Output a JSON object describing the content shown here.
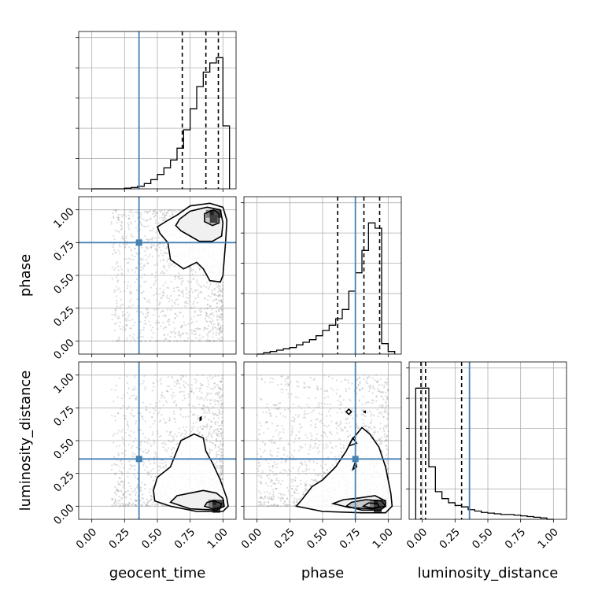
{
  "chart_data": {
    "type": "corner",
    "parameters": [
      "geocent_time",
      "phase",
      "luminosity_distance"
    ],
    "tick_values": [
      0.0,
      0.25,
      0.5,
      0.75,
      1.0
    ],
    "tick_labels": [
      "0.00",
      "0.25",
      "0.50",
      "0.75",
      "1.00"
    ],
    "axis_range": [
      -0.1,
      1.1
    ],
    "grid": true,
    "colors": {
      "truth": "#4682b4",
      "hist": "#000000",
      "points": "#9e9e9e",
      "quantile": "#000000"
    },
    "injection_values": {
      "geocent_time": 0.36,
      "phase": 0.75,
      "luminosity_distance": 0.36
    },
    "marginals": [
      {
        "parameter": "geocent_time",
        "quantiles": [
          0.69,
          0.87,
          0.965
        ],
        "bin_edges": [
          0.0,
          0.05,
          0.1,
          0.15,
          0.2,
          0.25,
          0.3,
          0.35,
          0.4,
          0.45,
          0.5,
          0.55,
          0.6,
          0.65,
          0.7,
          0.75,
          0.8,
          0.85,
          0.9,
          0.95,
          1.0,
          1.05
        ],
        "counts": [
          0.0,
          0.0,
          0.0,
          0.0,
          0.0,
          0.5,
          1.0,
          2.0,
          4.0,
          7.0,
          11.0,
          16.0,
          22.0,
          31.0,
          45.0,
          61.0,
          78.0,
          89.0,
          96.0,
          100.0,
          48.0
        ]
      },
      {
        "parameter": "phase",
        "quantiles": [
          0.615,
          0.815,
          0.935
        ],
        "bin_edges": [
          0.0,
          0.05,
          0.1,
          0.15,
          0.2,
          0.25,
          0.3,
          0.35,
          0.4,
          0.45,
          0.5,
          0.55,
          0.6,
          0.65,
          0.7,
          0.75,
          0.8,
          0.85,
          0.9,
          0.95,
          1.0,
          1.05
        ],
        "counts": [
          0.0,
          1.0,
          2.0,
          3.0,
          4.0,
          5.0,
          7.0,
          9.0,
          11.0,
          14.0,
          18.0,
          22.0,
          27.0,
          34.0,
          48.0,
          62.0,
          79.0,
          100.0,
          96.0,
          8.0,
          2.0
        ]
      },
      {
        "parameter": "luminosity_distance",
        "quantiles": [
          -0.01,
          0.025,
          0.3
        ],
        "bin_edges": [
          -0.05,
          0.0,
          0.05,
          0.1,
          0.15,
          0.2,
          0.25,
          0.3,
          0.35,
          0.4,
          0.45,
          0.5,
          0.55,
          0.6,
          0.65,
          0.7,
          0.75,
          0.8,
          0.85,
          0.9,
          0.95,
          1.0
        ],
        "counts": [
          95.0,
          95.0,
          38.0,
          20.0,
          15.0,
          12.0,
          10.0,
          9.0,
          7.0,
          6.0,
          5.0,
          4.5,
          4.0,
          3.5,
          3.5,
          3.0,
          2.5,
          2.0,
          1.5,
          1.0,
          0.0
        ]
      }
    ],
    "joints": [
      {
        "x": "geocent_time",
        "y": "phase",
        "peak": [
          0.93,
          0.95
        ],
        "contours": [
          [
            [
              0.65,
              0.96
            ],
            [
              0.75,
              1.03
            ],
            [
              0.9,
              1.05
            ],
            [
              1.0,
              1.02
            ],
            [
              1.03,
              0.92
            ],
            [
              1.02,
              0.75
            ],
            [
              1.0,
              0.5
            ],
            [
              0.98,
              0.45
            ],
            [
              0.9,
              0.46
            ],
            [
              0.85,
              0.55
            ],
            [
              0.8,
              0.6
            ],
            [
              0.7,
              0.55
            ],
            [
              0.6,
              0.62
            ],
            [
              0.58,
              0.75
            ],
            [
              0.52,
              0.82
            ],
            [
              0.5,
              0.87
            ],
            [
              0.58,
              0.92
            ]
          ],
          [
            [
              0.67,
              0.93
            ],
            [
              0.75,
              0.99
            ],
            [
              0.88,
              1.02
            ],
            [
              0.98,
              1.0
            ],
            [
              1.0,
              0.9
            ],
            [
              0.99,
              0.8
            ],
            [
              0.92,
              0.76
            ],
            [
              0.82,
              0.76
            ],
            [
              0.75,
              0.8
            ],
            [
              0.68,
              0.84
            ],
            [
              0.64,
              0.88
            ]
          ],
          [
            [
              0.86,
              0.97
            ],
            [
              0.93,
              1.0
            ],
            [
              0.97,
              0.97
            ],
            [
              0.97,
              0.9
            ],
            [
              0.92,
              0.88
            ],
            [
              0.86,
              0.91
            ]
          ]
        ]
      },
      {
        "x": "geocent_time",
        "y": "luminosity_distance",
        "peak": [
          0.95,
          0.0
        ],
        "contours": [
          [
            [
              0.48,
              0.04
            ],
            [
              0.6,
              0.0
            ],
            [
              0.8,
              -0.04
            ],
            [
              1.0,
              -0.04
            ],
            [
              1.04,
              0.0
            ],
            [
              1.03,
              0.06
            ],
            [
              0.98,
              0.2
            ],
            [
              0.92,
              0.33
            ],
            [
              0.87,
              0.42
            ],
            [
              0.85,
              0.52
            ],
            [
              0.78,
              0.55
            ],
            [
              0.68,
              0.5
            ],
            [
              0.6,
              0.3
            ],
            [
              0.5,
              0.22
            ],
            [
              0.47,
              0.12
            ]
          ],
          [
            [
              0.6,
              0.03
            ],
            [
              0.75,
              -0.02
            ],
            [
              0.95,
              -0.03
            ],
            [
              1.01,
              0.0
            ],
            [
              1.0,
              0.06
            ],
            [
              0.95,
              0.1
            ],
            [
              0.85,
              0.12
            ],
            [
              0.75,
              0.1
            ],
            [
              0.65,
              0.08
            ]
          ],
          [
            [
              0.86,
              0.0
            ],
            [
              0.92,
              -0.02
            ],
            [
              0.98,
              -0.01
            ],
            [
              0.99,
              0.02
            ],
            [
              0.93,
              0.04
            ],
            [
              0.88,
              0.03
            ]
          ],
          [
            [
              0.826,
              0.655
            ],
            [
              0.834,
              0.66
            ],
            [
              0.834,
              0.68
            ],
            [
              0.826,
              0.675
            ]
          ]
        ]
      },
      {
        "x": "phase",
        "y": "luminosity_distance",
        "peak": [
          0.92,
          0.0
        ],
        "contours": [
          [
            [
              0.3,
              0.0
            ],
            [
              0.5,
              -0.04
            ],
            [
              0.8,
              -0.05
            ],
            [
              0.98,
              -0.05
            ],
            [
              1.03,
              0.0
            ],
            [
              1.02,
              0.1
            ],
            [
              0.98,
              0.3
            ],
            [
              0.93,
              0.45
            ],
            [
              0.86,
              0.55
            ],
            [
              0.8,
              0.6
            ],
            [
              0.72,
              0.5
            ],
            [
              0.68,
              0.42
            ],
            [
              0.6,
              0.3
            ],
            [
              0.5,
              0.2
            ],
            [
              0.42,
              0.15
            ],
            [
              0.35,
              0.06
            ]
          ],
          [
            [
              0.58,
              0.02
            ],
            [
              0.7,
              -0.01
            ],
            [
              0.88,
              -0.02
            ],
            [
              0.98,
              0.0
            ],
            [
              0.98,
              0.04
            ],
            [
              0.9,
              0.08
            ],
            [
              0.76,
              0.06
            ],
            [
              0.66,
              0.05
            ]
          ],
          [
            [
              0.68,
              0.0
            ],
            [
              0.8,
              -0.03
            ],
            [
              0.94,
              -0.03
            ],
            [
              0.98,
              0.0
            ],
            [
              0.95,
              0.04
            ],
            [
              0.83,
              0.05
            ],
            [
              0.72,
              0.03
            ]
          ],
          [
            [
              0.81,
              0.0
            ],
            [
              0.88,
              -0.015
            ],
            [
              0.93,
              -0.005
            ],
            [
              0.92,
              0.02
            ],
            [
              0.85,
              0.025
            ]
          ],
          [
            [
              0.68,
              0.72
            ],
            [
              0.7,
              0.74
            ],
            [
              0.72,
              0.72
            ],
            [
              0.7,
              0.7
            ]
          ],
          [
            [
              0.7,
              0.46
            ],
            [
              0.73,
              0.52
            ],
            [
              0.76,
              0.48
            ]
          ],
          [
            [
              0.815,
              0.72
            ],
            [
              0.825,
              0.725
            ],
            [
              0.825,
              0.715
            ]
          ],
          [
            [
              0.73,
              0.28
            ],
            [
              0.75,
              0.34
            ],
            [
              0.76,
              0.3
            ]
          ]
        ]
      }
    ]
  }
}
